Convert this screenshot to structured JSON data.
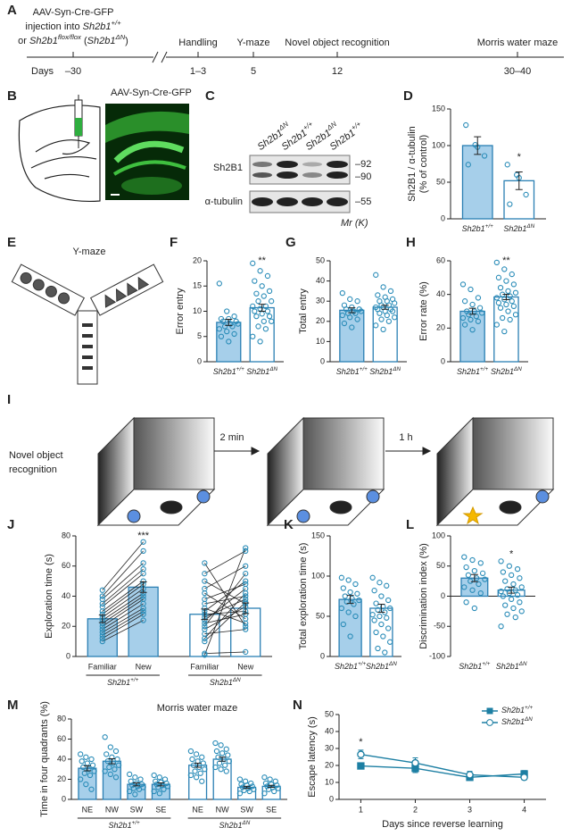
{
  "timeline": {
    "panel": "A",
    "injection": [
      "AAV-Syn-Cre-GFP",
      "injection into Sh2b1+/+",
      "or Sh2b1flox/flox (Sh2b1ΔN)"
    ],
    "days": "Days",
    "stages": [
      {
        "name": "",
        "day": "–30"
      },
      {
        "name": "Handling",
        "day": "1–3"
      },
      {
        "name": "Y-maze",
        "day": "5"
      },
      {
        "name": "Novel object recognition",
        "day": "12"
      },
      {
        "name": "Morris water maze",
        "day": "30–40"
      }
    ]
  },
  "virus": {
    "panel": "B",
    "label": "AAV-Syn-Cre-GFP"
  },
  "blot": {
    "panel": "C",
    "lanes": [
      "Sh2b1ΔN",
      "Sh2b1+/+",
      "Sh2b1ΔN",
      "Sh2b1+/+"
    ],
    "rows": [
      "Sh2B1",
      "α-tubulin"
    ],
    "markers": [
      "–92",
      "–90",
      "–55"
    ],
    "unit": "Mr (K)"
  },
  "ymaze": {
    "panel": "E",
    "title": "Y-maze"
  },
  "nor": {
    "panel": "I",
    "title": [
      "Novel object",
      "recognition"
    ],
    "steps": [
      "2 min",
      "1 h"
    ]
  },
  "chart_data": [
    {
      "type": "bar",
      "panel": "D",
      "ylabel": [
        "Sh2B1 / α-tubulin",
        "(% of control)"
      ],
      "categories": [
        "Sh2b1+/+",
        "Sh2b1ΔN"
      ],
      "values": [
        100,
        52
      ],
      "errors": [
        12,
        12
      ],
      "points": [
        [
          128,
          101,
          86,
          74,
          98
        ],
        [
          74,
          60,
          33,
          20,
          56
        ]
      ],
      "ylim": [
        0,
        150
      ],
      "yticks": [
        0,
        50,
        100,
        150
      ],
      "colors": [
        "#a6cfea",
        "#ffffff"
      ],
      "edge_color": "#2a7fb3",
      "point_color": "#2a8cb8",
      "significance": "*"
    },
    {
      "type": "bar",
      "panel": "F",
      "ylabel": [
        "Error entry"
      ],
      "categories": [
        "Sh2b1+/+",
        "Sh2b1ΔN"
      ],
      "values": [
        7.8,
        10.7
      ],
      "errors": [
        0.6,
        0.7
      ],
      "points": [
        [
          15.5,
          10,
          9,
          8.5,
          8.5,
          8,
          8,
          7.5,
          7.5,
          7,
          7,
          6.5,
          6,
          5.5,
          5,
          4
        ],
        [
          19.5,
          18,
          17,
          16,
          15,
          14,
          13.5,
          13,
          12,
          12,
          11,
          11,
          10.5,
          10,
          10,
          9.5,
          9,
          9,
          8,
          8,
          7,
          6.5,
          5,
          4
        ]
      ],
      "ylim": [
        0,
        20
      ],
      "yticks": [
        0,
        5,
        10,
        15,
        20
      ],
      "colors": [
        "#a6cfea",
        "#ffffff"
      ],
      "edge_color": "#2a7fb3",
      "point_color": "#2a8cb8",
      "significance": "**"
    },
    {
      "type": "bar",
      "panel": "G",
      "ylabel": [
        "Total entry"
      ],
      "categories": [
        "Sh2b1+/+",
        "Sh2b1ΔN"
      ],
      "values": [
        25.5,
        27
      ],
      "errors": [
        1.2,
        1
      ],
      "points": [
        [
          34,
          31,
          30,
          28,
          27,
          26,
          26,
          25,
          25,
          24,
          24,
          23,
          22,
          21,
          19,
          17
        ],
        [
          43,
          37,
          35,
          33,
          32,
          31,
          30,
          30,
          29,
          28,
          28,
          27,
          27,
          26,
          26,
          25,
          25,
          24,
          23,
          22,
          21,
          20,
          18,
          16
        ]
      ],
      "ylim": [
        0,
        50
      ],
      "yticks": [
        0,
        10,
        20,
        30,
        40,
        50
      ],
      "colors": [
        "#a6cfea",
        "#ffffff"
      ],
      "edge_color": "#2a7fb3",
      "point_color": "#2a8cb8"
    },
    {
      "type": "bar",
      "panel": "H",
      "ylabel": [
        "Error rate (%)"
      ],
      "categories": [
        "Sh2b1+/+",
        "Sh2b1ΔN"
      ],
      "values": [
        30,
        38.5
      ],
      "errors": [
        1.8,
        1.6
      ],
      "points": [
        [
          46,
          43,
          38,
          36,
          34,
          32,
          30,
          30,
          29,
          28,
          27,
          26,
          25,
          24,
          22,
          19
        ],
        [
          59,
          55,
          52,
          50,
          48,
          46,
          44,
          42,
          41,
          40,
          39,
          38,
          37,
          36,
          35,
          34,
          33,
          32,
          30,
          28,
          26,
          25,
          22,
          18
        ]
      ],
      "ylim": [
        0,
        60
      ],
      "yticks": [
        0,
        20,
        40,
        60
      ],
      "colors": [
        "#a6cfea",
        "#ffffff"
      ],
      "edge_color": "#2a7fb3",
      "point_color": "#2a8cb8",
      "significance": "**"
    },
    {
      "type": "bar",
      "panel": "J",
      "paired": true,
      "ylabel": [
        "Exploration time (s)"
      ],
      "categories": [
        "Familiar",
        "New",
        "Familiar",
        "New"
      ],
      "groups": [
        "Sh2b1+/+",
        "Sh2b1ΔN"
      ],
      "values": [
        25,
        46,
        28,
        32
      ],
      "errors": [
        2.5,
        3.5,
        3.5,
        3.5
      ],
      "points": [
        [
          44,
          40,
          38,
          35,
          33,
          30,
          28,
          26,
          24,
          22,
          20,
          18,
          16,
          14,
          12,
          10
        ],
        [
          76,
          70,
          62,
          58,
          55,
          50,
          48,
          45,
          42,
          40,
          38,
          35,
          32,
          30,
          28,
          24
        ],
        [
          62,
          55,
          50,
          45,
          42,
          38,
          35,
          32,
          30,
          28,
          26,
          24,
          22,
          20,
          18,
          15,
          12,
          10,
          2,
          1
        ],
        [
          20,
          70,
          35,
          60,
          25,
          48,
          40,
          22,
          50,
          30,
          38,
          45,
          28,
          55,
          33,
          18,
          42,
          36,
          3,
          72
        ]
      ],
      "ylim": [
        0,
        80
      ],
      "yticks": [
        0,
        20,
        40,
        60,
        80
      ],
      "colors": [
        "#a6cfea",
        "#a6cfea",
        "#ffffff",
        "#ffffff"
      ],
      "edge_color": "#2a7fb3",
      "point_color": "#2a8cb8",
      "significance": "***"
    },
    {
      "type": "bar",
      "panel": "K",
      "ylabel": [
        "Total exploration time (s)"
      ],
      "categories": [
        "Sh2b1+/+",
        "Sh2b1ΔN"
      ],
      "values": [
        71,
        60
      ],
      "errors": [
        5,
        5
      ],
      "points": [
        [
          98,
          95,
          90,
          85,
          80,
          78,
          75,
          72,
          70,
          68,
          65,
          60,
          55,
          50,
          40,
          25
        ],
        [
          98,
          92,
          88,
          82,
          75,
          70,
          66,
          62,
          60,
          58,
          55,
          52,
          50,
          48,
          45,
          40,
          35,
          30,
          25,
          18,
          10,
          5
        ]
      ],
      "ylim": [
        0,
        150
      ],
      "yticks": [
        0,
        50,
        100,
        150
      ],
      "colors": [
        "#a6cfea",
        "#ffffff"
      ],
      "edge_color": "#2a7fb3",
      "point_color": "#2a8cb8"
    },
    {
      "type": "bar",
      "panel": "L",
      "ylabel": [
        "Discrimination index (%)"
      ],
      "categories": [
        "Sh2b1+/+",
        "Sh2b1ΔN"
      ],
      "values": [
        30,
        10
      ],
      "errors": [
        6,
        5
      ],
      "points": [
        [
          65,
          60,
          55,
          48,
          42,
          38,
          35,
          30,
          28,
          25,
          20,
          15,
          10,
          5,
          -10,
          -20
        ],
        [
          58,
          50,
          45,
          40,
          35,
          30,
          25,
          20,
          15,
          12,
          10,
          8,
          5,
          2,
          0,
          -5,
          -10,
          -15,
          -20,
          -25,
          -30,
          -35,
          -50
        ]
      ],
      "ylim": [
        -100,
        100
      ],
      "yticks": [
        -100,
        -50,
        0,
        50,
        100
      ],
      "colors": [
        "#a6cfea",
        "#ffffff"
      ],
      "edge_color": "#2a7fb3",
      "point_color": "#2a8cb8",
      "significance": "*"
    },
    {
      "type": "bar",
      "panel": "M",
      "title": "Morris water maze",
      "ylabel": [
        "Time in four quadrants (%)"
      ],
      "categories": [
        "NE",
        "NW",
        "SW",
        "SE",
        "NE",
        "NW",
        "SW",
        "SE"
      ],
      "groups": [
        "Sh2b1+/+",
        "Sh2b1ΔN"
      ],
      "values": [
        31,
        38,
        15,
        15,
        34,
        40,
        12,
        13
      ],
      "errors": [
        2.5,
        2.5,
        1.5,
        1.5,
        2,
        2,
        1,
        1
      ],
      "points": [
        [
          45,
          42,
          40,
          38,
          36,
          34,
          32,
          30,
          28,
          26,
          24,
          20,
          15,
          10
        ],
        [
          62,
          52,
          48,
          45,
          42,
          40,
          38,
          36,
          34,
          32,
          30,
          28,
          25,
          22
        ],
        [
          25,
          22,
          20,
          18,
          16,
          15,
          14,
          13,
          12,
          11,
          10,
          8,
          5
        ],
        [
          24,
          22,
          20,
          18,
          17,
          16,
          15,
          14,
          13,
          12,
          10,
          8,
          6
        ],
        [
          48,
          45,
          42,
          40,
          38,
          36,
          34,
          32,
          30,
          28,
          26,
          24,
          22,
          18
        ],
        [
          56,
          54,
          50,
          48,
          46,
          44,
          42,
          40,
          38,
          36,
          34,
          32,
          30,
          28
        ],
        [
          20,
          18,
          16,
          15,
          14,
          13,
          12,
          11,
          10,
          9,
          8,
          6
        ],
        [
          22,
          20,
          18,
          16,
          15,
          14,
          13,
          12,
          11,
          10,
          8,
          6
        ]
      ],
      "ylim": [
        0,
        80
      ],
      "yticks": [
        0,
        20,
        40,
        60,
        80
      ],
      "colors": [
        "#a6cfea",
        "#a6cfea",
        "#a6cfea",
        "#a6cfea",
        "#ffffff",
        "#ffffff",
        "#ffffff",
        "#ffffff"
      ],
      "edge_color": "#2a7fb3",
      "point_color": "#2a8cb8"
    },
    {
      "type": "line",
      "panel": "N",
      "xlabel": "Days since reverse learning",
      "ylabel": [
        "Escape latency (s)"
      ],
      "x": [
        1,
        2,
        3,
        4
      ],
      "xlim": [
        0.6,
        4.4
      ],
      "xticks": [
        1,
        2,
        3,
        4
      ],
      "ylim": [
        0,
        50
      ],
      "yticks": [
        0,
        10,
        20,
        30,
        40,
        50
      ],
      "legend": "upper right",
      "significance": "*",
      "series": [
        {
          "name": "Sh2b1+/+",
          "color": "#1d7fa3",
          "marker": "square",
          "values": [
            19.7,
            18.3,
            13,
            15
          ],
          "errors": [
            1.5,
            2.5,
            1.5,
            2
          ]
        },
        {
          "name": "Sh2b1ΔN",
          "color": "#1d7fa3",
          "marker": "circle",
          "values": [
            26.5,
            21.5,
            14.5,
            13
          ],
          "errors": [
            2.5,
            3,
            2,
            1.5
          ]
        }
      ]
    }
  ]
}
